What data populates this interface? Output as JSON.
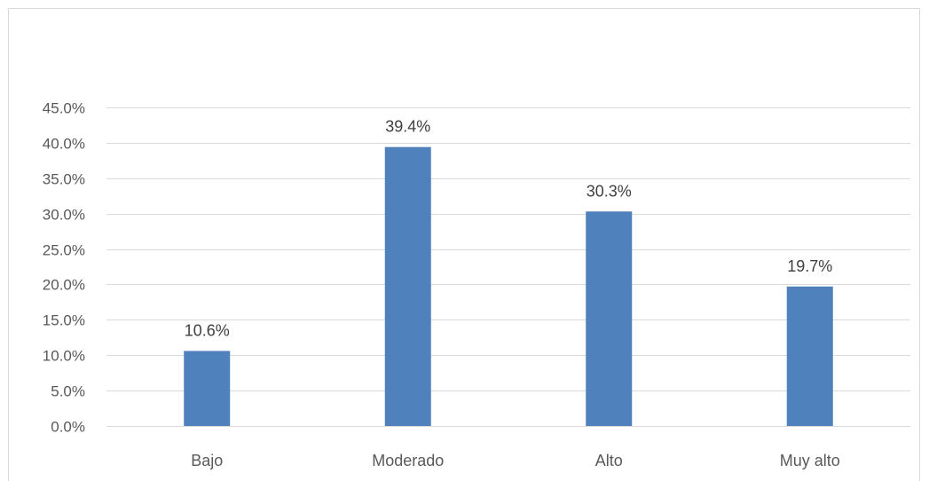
{
  "chart_data": {
    "type": "bar",
    "categories": [
      "Bajo",
      "Moderado",
      "Alto",
      "Muy alto"
    ],
    "values": [
      10.6,
      39.4,
      30.3,
      19.7
    ],
    "data_labels": [
      "10.6%",
      "39.4%",
      "30.3%",
      "19.7%"
    ],
    "title": "",
    "xlabel": "",
    "ylabel": "",
    "ylim": [
      0,
      45
    ],
    "yticks": [
      "0.0%",
      "5.0%",
      "10.0%",
      "15.0%",
      "20.0%",
      "25.0%",
      "30.0%",
      "35.0%",
      "40.0%",
      "45.0%"
    ],
    "grid": true,
    "legend": "none",
    "bar_color": "#4f81bd",
    "gridline_color": "#d9d9d9",
    "label_color": "#595959"
  }
}
